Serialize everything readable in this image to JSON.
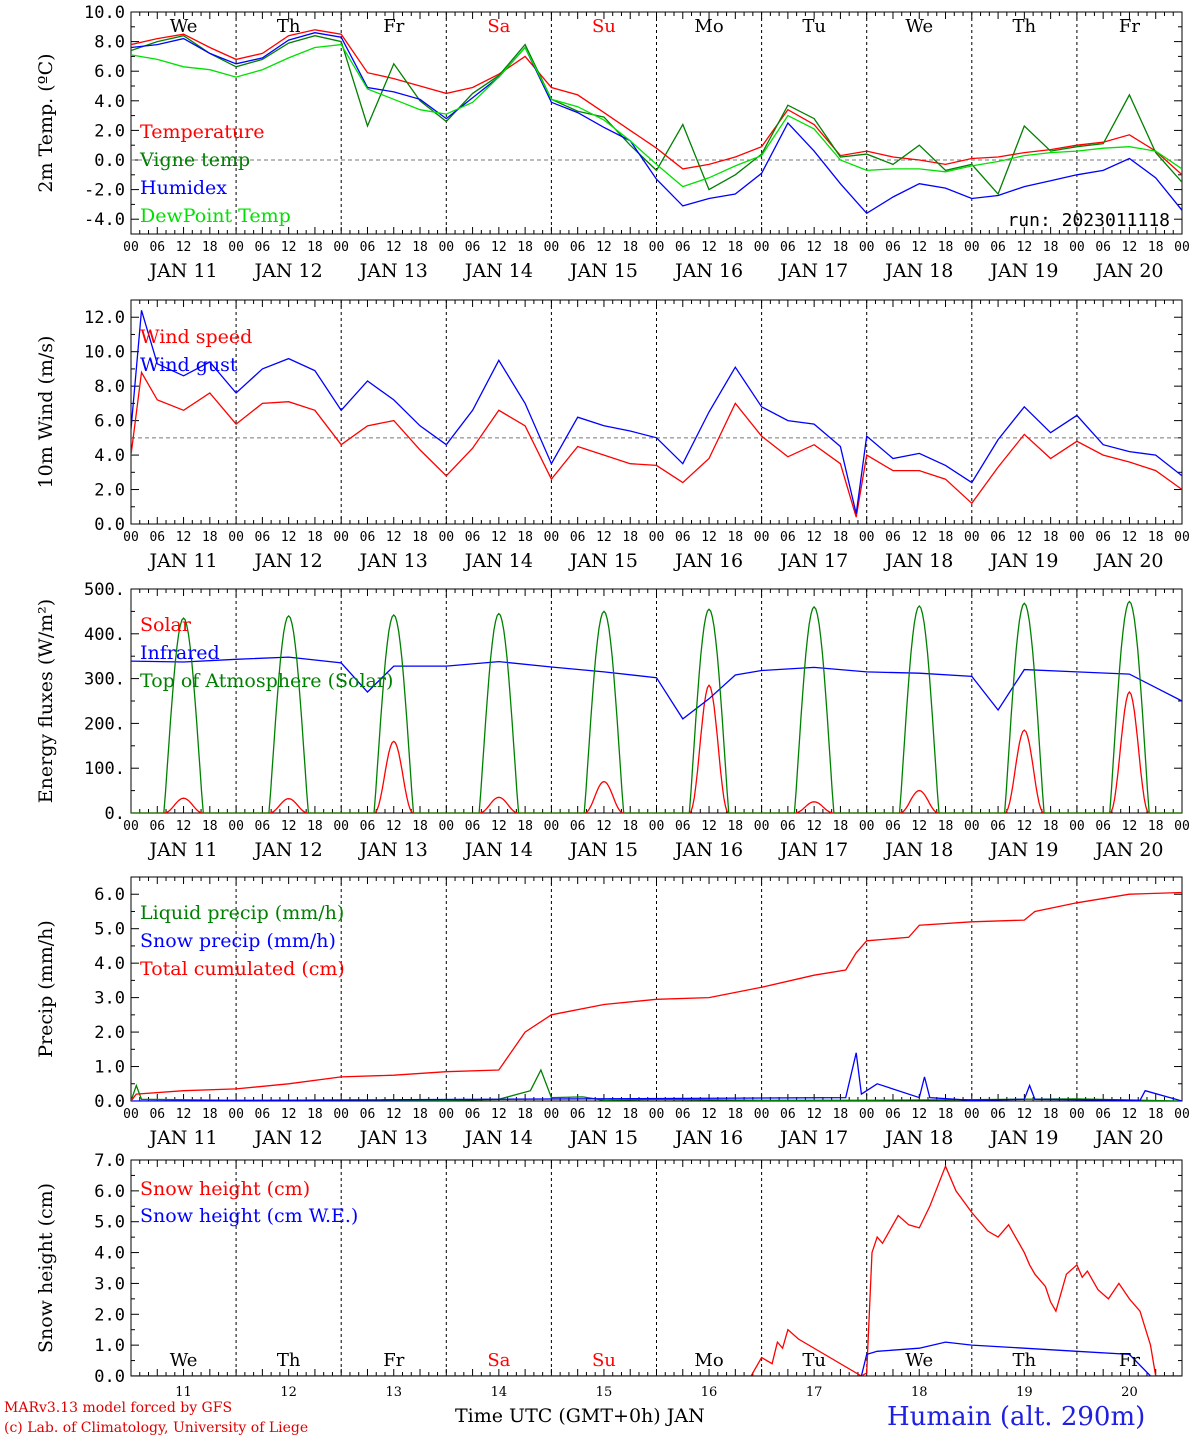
{
  "chart_data": [
    {
      "type": "line",
      "ylabel": "2m Temp. (ºC)",
      "ylim": [
        -5,
        10
      ],
      "yticks": [
        "-4.0",
        "-2.0",
        "0.0",
        "2.0",
        "4.0",
        "6.0",
        "8.0",
        "10.0"
      ],
      "reference_line": 0,
      "day_labels": [
        "We",
        "Th",
        "Fr",
        "Sa",
        "Su",
        "Mo",
        "Tu",
        "We",
        "Th",
        "Fr"
      ],
      "annotation": "run: 2023011118",
      "x_days": [
        11,
        11.25,
        11.5,
        11.75,
        12,
        12.25,
        12.5,
        12.75,
        13,
        13.25,
        13.5,
        13.75,
        14,
        14.25,
        14.5,
        14.75,
        15,
        15.25,
        15.5,
        15.75,
        16,
        16.25,
        16.5,
        16.75,
        17,
        17.25,
        17.5,
        17.75,
        18,
        18.25,
        18.5,
        18.75,
        19,
        19.25,
        19.5,
        19.75,
        20,
        20.25,
        20.5,
        20.75,
        21
      ],
      "series": [
        {
          "name": "Temperature",
          "color": "#ff0000",
          "values": [
            7.8,
            8.2,
            8.5,
            7.6,
            6.8,
            7.2,
            8.4,
            8.8,
            8.5,
            5.9,
            5.5,
            5.0,
            4.5,
            4.9,
            5.8,
            7.0,
            4.9,
            4.4,
            3.2,
            2.0,
            0.8,
            -0.6,
            -0.3,
            0.2,
            0.9,
            3.4,
            2.4,
            0.3,
            0.6,
            0.2,
            0.0,
            -0.3,
            0.1,
            0.2,
            0.5,
            0.7,
            1.0,
            1.2,
            1.7,
            0.6,
            -1.0
          ]
        },
        {
          "name": "Vigne temp",
          "color": "#008000",
          "values": [
            7.4,
            8.0,
            8.4,
            7.2,
            6.3,
            6.8,
            7.9,
            8.4,
            8.0,
            2.3,
            6.5,
            4.0,
            2.6,
            4.5,
            5.7,
            7.8,
            4.1,
            3.3,
            2.9,
            1.0,
            -0.7,
            2.4,
            -2.0,
            -1.0,
            0.4,
            3.7,
            2.8,
            0.2,
            0.4,
            -0.3,
            1.0,
            -0.7,
            -0.3,
            -2.3,
            2.3,
            0.6,
            0.9,
            1.1,
            4.4,
            0.5,
            -1.5
          ]
        },
        {
          "name": "Humidex",
          "color": "#0000ff",
          "values": [
            7.6,
            7.8,
            8.2,
            7.2,
            6.5,
            6.9,
            8.1,
            8.6,
            8.3,
            4.9,
            4.6,
            4.1,
            2.8,
            4.2,
            5.6,
            7.6,
            3.9,
            3.2,
            2.2,
            1.3,
            -1.3,
            -3.1,
            -2.6,
            -2.3,
            -0.9,
            2.5,
            0.6,
            -1.6,
            -3.6,
            -2.5,
            -1.6,
            -1.9,
            -2.6,
            -2.4,
            -1.8,
            -1.4,
            -1.0,
            -0.7,
            0.1,
            -1.2,
            -3.4
          ]
        },
        {
          "name": "DewPoint Temp",
          "color": "#00e000",
          "values": [
            7.1,
            6.8,
            6.3,
            6.1,
            5.6,
            6.1,
            6.9,
            7.6,
            7.8,
            4.8,
            4.1,
            3.4,
            3.1,
            3.9,
            5.6,
            7.6,
            4.1,
            3.6,
            2.7,
            1.3,
            -0.3,
            -1.8,
            -1.2,
            -0.4,
            0.3,
            3.0,
            2.1,
            0.0,
            -0.7,
            -0.6,
            -0.6,
            -0.8,
            -0.4,
            -0.1,
            0.3,
            0.5,
            0.6,
            0.8,
            0.9,
            0.6,
            -0.6
          ]
        }
      ]
    },
    {
      "type": "line",
      "ylabel": "10m Wind (m/s)",
      "ylim": [
        0,
        13
      ],
      "yticks": [
        "0.0",
        "2.0",
        "4.0",
        "6.0",
        "8.0",
        "10.0",
        "12.0"
      ],
      "reference_line": 5,
      "x_days": [
        11,
        11.1,
        11.25,
        11.5,
        11.75,
        12,
        12.25,
        12.5,
        12.75,
        13,
        13.25,
        13.5,
        13.75,
        14,
        14.25,
        14.5,
        14.75,
        15,
        15.25,
        15.5,
        15.75,
        16,
        16.25,
        16.5,
        16.75,
        17,
        17.25,
        17.5,
        17.75,
        17.9,
        18,
        18.25,
        18.5,
        18.75,
        19,
        19.25,
        19.5,
        19.75,
        20,
        20.25,
        20.5,
        20.75,
        21
      ],
      "series": [
        {
          "name": "Wind speed",
          "color": "#ff0000",
          "values": [
            4.0,
            8.8,
            7.2,
            6.6,
            7.6,
            5.8,
            7.0,
            7.1,
            6.6,
            4.6,
            5.7,
            6.0,
            4.3,
            2.8,
            4.4,
            6.6,
            5.7,
            2.6,
            4.5,
            4.0,
            3.5,
            3.4,
            2.4,
            3.8,
            7.0,
            5.1,
            3.9,
            4.6,
            3.5,
            0.4,
            4.0,
            3.1,
            3.1,
            2.6,
            1.2,
            3.3,
            5.2,
            3.8,
            4.8,
            4.0,
            3.6,
            3.1,
            2.0
          ]
        },
        {
          "name": "Wind gust",
          "color": "#0000ff",
          "values": [
            5.5,
            12.4,
            9.3,
            8.6,
            9.4,
            7.6,
            9.0,
            9.6,
            8.9,
            6.6,
            8.3,
            7.2,
            5.7,
            4.6,
            6.6,
            9.5,
            7.0,
            3.5,
            6.2,
            5.7,
            5.4,
            5.0,
            3.5,
            6.5,
            9.1,
            6.8,
            6.0,
            5.8,
            4.5,
            0.6,
            5.1,
            3.8,
            4.1,
            3.4,
            2.4,
            4.9,
            6.8,
            5.3,
            6.3,
            4.6,
            4.2,
            4.0,
            2.8
          ]
        }
      ]
    },
    {
      "type": "line",
      "ylabel": "Energy fluxes (W/m²)",
      "ylim": [
        0,
        500
      ],
      "yticks": [
        "0.",
        "100.",
        "200.",
        "300.",
        "400.",
        "500."
      ],
      "series": [
        {
          "name": "Solar",
          "color": "#ff0000",
          "day_peaks": [
            33,
            32,
            160,
            35,
            70,
            285,
            25,
            50,
            185,
            270
          ]
        },
        {
          "name": "Infrared",
          "color": "#0000ff",
          "x_days": [
            11,
            11.5,
            12,
            12.5,
            13,
            13.25,
            13.5,
            14,
            14.5,
            15,
            15.5,
            16,
            16.25,
            16.5,
            16.75,
            17,
            17.5,
            18,
            18.5,
            19,
            19.25,
            19.5,
            20,
            20.5,
            21
          ],
          "values": [
            339,
            337,
            343,
            348,
            335,
            270,
            328,
            328,
            338,
            326,
            315,
            302,
            210,
            255,
            308,
            318,
            325,
            315,
            312,
            305,
            230,
            320,
            315,
            310,
            250
          ]
        },
        {
          "name": "Top of Atmosphere (Solar)",
          "color": "#008000",
          "day_peaks": [
            435,
            440,
            442,
            445,
            450,
            455,
            460,
            462,
            468,
            472
          ]
        }
      ]
    },
    {
      "type": "line",
      "ylabel": "Precip (mm/h)",
      "ylim": [
        0,
        6.5
      ],
      "yticks": [
        "0.0",
        "1.0",
        "2.0",
        "3.0",
        "4.0",
        "5.0",
        "6.0"
      ],
      "series": [
        {
          "name": "Liquid precip (mm/h)",
          "color": "#008000",
          "x_days": [
            11,
            11.05,
            11.1,
            12,
            13,
            14,
            14.5,
            14.8,
            14.9,
            15,
            15.3,
            15.5,
            16,
            17,
            18,
            19,
            20,
            21
          ],
          "values": [
            0,
            0.45,
            0.05,
            0.02,
            0.03,
            0.02,
            0.05,
            0.3,
            0.9,
            0.1,
            0.12,
            0.02,
            0.05,
            0.02,
            0.02,
            0.04,
            0.06,
            0
          ]
        },
        {
          "name": "Snow precip (mm/h)",
          "color": "#0000ff",
          "x_days": [
            11,
            17.8,
            17.9,
            17.95,
            18.1,
            18.5,
            18.55,
            18.6,
            19,
            19.5,
            19.55,
            19.6,
            20.6,
            20.65,
            21
          ],
          "values": [
            0,
            0.1,
            1.4,
            0.2,
            0.5,
            0.1,
            0.7,
            0.1,
            0.02,
            0.05,
            0.45,
            0.05,
            0.02,
            0.3,
            0
          ]
        },
        {
          "name": "Total cumulated (cm)",
          "color": "#ff0000",
          "x_days": [
            11,
            11.05,
            11.5,
            12,
            12.5,
            13,
            13.5,
            14,
            14.5,
            14.75,
            15,
            15.5,
            16,
            16.5,
            17,
            17.5,
            17.8,
            17.9,
            18,
            18.4,
            18.5,
            19,
            19.5,
            19.6,
            20,
            20.5,
            21
          ],
          "values": [
            0,
            0.2,
            0.3,
            0.35,
            0.5,
            0.7,
            0.75,
            0.85,
            0.9,
            2.0,
            2.5,
            2.8,
            2.95,
            3.0,
            3.3,
            3.65,
            3.8,
            4.3,
            4.65,
            4.75,
            5.1,
            5.2,
            5.25,
            5.5,
            5.75,
            6.0,
            6.05
          ]
        }
      ]
    },
    {
      "type": "line",
      "ylabel": "Snow height (cm)",
      "ylim": [
        0,
        7
      ],
      "yticks": [
        "0.0",
        "1.0",
        "2.0",
        "3.0",
        "4.0",
        "5.0",
        "6.0",
        "7.0"
      ],
      "day_labels": [
        "We",
        "Th",
        "Fr",
        "Sa",
        "Su",
        "Mo",
        "Tu",
        "We",
        "Th",
        "Fr"
      ],
      "day_numbers": [
        "11",
        "12",
        "13",
        "14",
        "15",
        "16",
        "17",
        "18",
        "19",
        "20"
      ],
      "series": [
        {
          "name": "Snow height (cm)",
          "color": "#ff0000",
          "x_days": [
            11,
            16.85,
            16.9,
            17.0,
            17.1,
            17.15,
            17.2,
            17.25,
            17.35,
            17.95,
            18.0,
            18.05,
            18.1,
            18.15,
            18.3,
            18.4,
            18.5,
            18.6,
            18.75,
            18.85,
            19.0,
            19.15,
            19.25,
            19.35,
            19.4,
            19.45,
            19.5,
            19.55,
            19.6,
            19.7,
            19.75,
            19.8,
            19.9,
            20.0,
            20.05,
            20.1,
            20.2,
            20.3,
            20.4,
            20.5,
            20.6,
            20.7,
            20.75,
            21
          ],
          "values": [
            0,
            0,
            0,
            0.6,
            0.4,
            1.1,
            0.9,
            1.5,
            1.2,
            0,
            0.1,
            4.0,
            4.5,
            4.3,
            5.2,
            4.9,
            4.8,
            5.5,
            6.8,
            6.0,
            5.3,
            4.7,
            4.5,
            4.9,
            4.6,
            4.3,
            4.0,
            3.6,
            3.3,
            2.9,
            2.4,
            2.1,
            3.3,
            3.6,
            3.2,
            3.4,
            2.8,
            2.5,
            3.0,
            2.5,
            2.1,
            1.0,
            0,
            0
          ]
        },
        {
          "name": "Snow height (cm W.E.)",
          "color": "#0000ff",
          "x_days": [
            11,
            17.95,
            18.0,
            18.1,
            18.5,
            18.75,
            19.0,
            19.5,
            20.0,
            20.5,
            20.7,
            21
          ],
          "values": [
            0,
            0,
            0.7,
            0.8,
            0.9,
            1.1,
            1.0,
            0.9,
            0.8,
            0.7,
            0,
            0
          ]
        }
      ]
    }
  ],
  "axis": {
    "date_labels": [
      "JAN 11",
      "JAN 12",
      "JAN 13",
      "JAN 14",
      "JAN 15",
      "JAN 16",
      "JAN 17",
      "JAN 18",
      "JAN 19",
      "JAN 20"
    ],
    "hour_labels": [
      "00",
      "06",
      "12",
      "18"
    ],
    "weekend_color": "#ff0000"
  },
  "footer": {
    "credit_line1": "MARv3.13 model forced by GFS",
    "credit_line2": "(c) Lab. of Climatology, University of Liege",
    "time_label": "Time UTC (GMT+0h) JAN",
    "station": "Humain (alt. 290m)"
  }
}
